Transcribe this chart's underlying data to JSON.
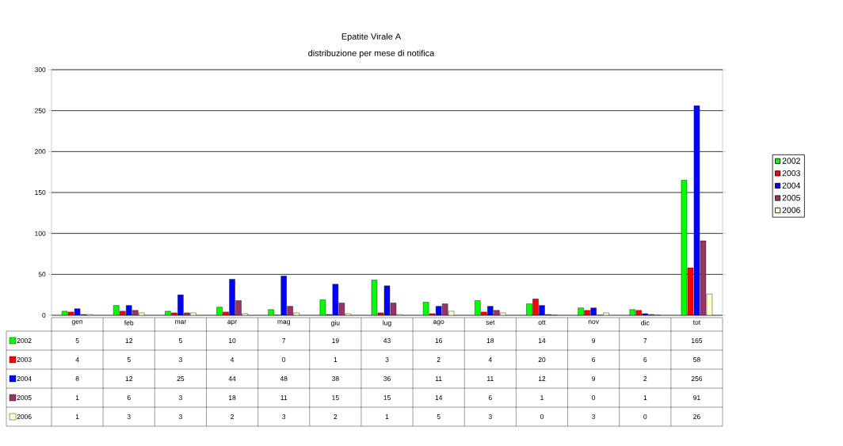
{
  "chart_data": {
    "type": "bar",
    "title": "Epatite Virale A",
    "subtitle": "distribuzione per mese di notifica",
    "categories": [
      "gen",
      "feb",
      "mar",
      "apr",
      "mag",
      "giu",
      "lug",
      "ago",
      "set",
      "ott",
      "nov",
      "dic",
      "tot"
    ],
    "series": [
      {
        "name": "2002",
        "color": "#00ff00",
        "values": [
          5,
          12,
          5,
          10,
          7,
          19,
          43,
          16,
          18,
          14,
          9,
          7,
          165
        ]
      },
      {
        "name": "2003",
        "color": "#ff0000",
        "values": [
          4,
          5,
          3,
          4,
          0,
          1,
          3,
          2,
          4,
          20,
          6,
          6,
          58
        ]
      },
      {
        "name": "2004",
        "color": "#0000ff",
        "values": [
          8,
          12,
          25,
          44,
          48,
          38,
          36,
          11,
          11,
          12,
          9,
          2,
          256
        ]
      },
      {
        "name": "2005",
        "color": "#993366",
        "values": [
          1,
          6,
          3,
          18,
          11,
          15,
          15,
          14,
          6,
          1,
          0,
          1,
          91
        ]
      },
      {
        "name": "2006",
        "color": "#ffffcc",
        "values": [
          1,
          3,
          3,
          2,
          3,
          2,
          1,
          5,
          3,
          0,
          3,
          0,
          26
        ]
      }
    ],
    "ylim": [
      0,
      300
    ],
    "yticks": [
      0,
      50,
      100,
      150,
      200,
      250,
      300
    ],
    "grid": "y",
    "legend": "right",
    "data_labels": true
  }
}
